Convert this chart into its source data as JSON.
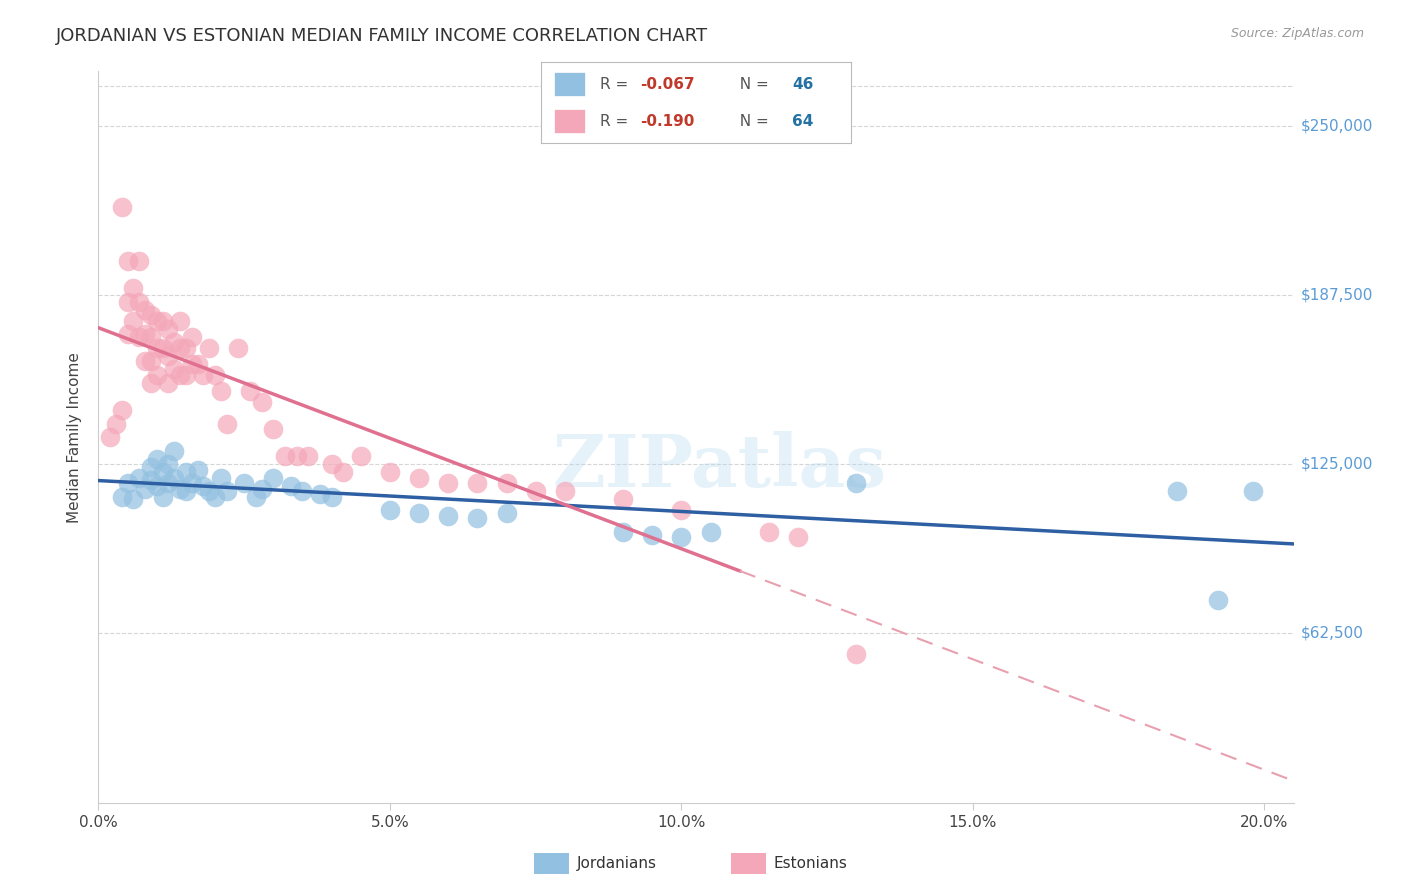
{
  "title": "JORDANIAN VS ESTONIAN MEDIAN FAMILY INCOME CORRELATION CHART",
  "source": "Source: ZipAtlas.com",
  "xlabel_ticks": [
    "0.0%",
    "5.0%",
    "10.0%",
    "15.0%",
    "20.0%"
  ],
  "xlabel_vals": [
    0.0,
    0.05,
    0.1,
    0.15,
    0.2
  ],
  "ylabel": "Median Family Income",
  "ytick_labels": [
    "$62,500",
    "$125,000",
    "$187,500",
    "$250,000"
  ],
  "ytick_vals": [
    62500,
    125000,
    187500,
    250000
  ],
  "ylim": [
    0,
    270000
  ],
  "xlim": [
    0.0,
    0.205
  ],
  "watermark": "ZIPatlas",
  "legend_blue_r": "-0.067",
  "legend_blue_n": "46",
  "legend_pink_r": "-0.190",
  "legend_pink_n": "64",
  "legend_label_blue": "Jordanians",
  "legend_label_pink": "Estonians",
  "blue_color": "#92c0e0",
  "pink_color": "#f4a7b9",
  "blue_line_color": "#2e5fa3",
  "pink_solid_color": "#e07090",
  "pink_dash_color": "#e8a0b0",
  "background_color": "#ffffff",
  "grid_color": "#cccccc",
  "jordanians_x": [
    0.004,
    0.005,
    0.006,
    0.007,
    0.008,
    0.009,
    0.009,
    0.01,
    0.01,
    0.011,
    0.011,
    0.012,
    0.012,
    0.013,
    0.013,
    0.014,
    0.015,
    0.015,
    0.016,
    0.017,
    0.018,
    0.019,
    0.02,
    0.021,
    0.022,
    0.025,
    0.027,
    0.028,
    0.03,
    0.033,
    0.035,
    0.038,
    0.04,
    0.05,
    0.055,
    0.06,
    0.065,
    0.07,
    0.09,
    0.095,
    0.1,
    0.105,
    0.13,
    0.185,
    0.192,
    0.198
  ],
  "jordanians_y": [
    113000,
    118000,
    112000,
    120000,
    116000,
    124000,
    119000,
    127000,
    117000,
    122000,
    113000,
    125000,
    118000,
    130000,
    120000,
    116000,
    122000,
    115000,
    118000,
    123000,
    117000,
    115000,
    113000,
    120000,
    115000,
    118000,
    113000,
    116000,
    120000,
    117000,
    115000,
    114000,
    113000,
    108000,
    107000,
    106000,
    105000,
    107000,
    100000,
    99000,
    98000,
    100000,
    118000,
    115000,
    75000,
    115000
  ],
  "estonians_x": [
    0.002,
    0.003,
    0.004,
    0.004,
    0.005,
    0.005,
    0.005,
    0.006,
    0.006,
    0.007,
    0.007,
    0.007,
    0.008,
    0.008,
    0.008,
    0.009,
    0.009,
    0.009,
    0.009,
    0.01,
    0.01,
    0.01,
    0.011,
    0.011,
    0.012,
    0.012,
    0.012,
    0.013,
    0.013,
    0.014,
    0.014,
    0.014,
    0.015,
    0.015,
    0.016,
    0.016,
    0.017,
    0.018,
    0.019,
    0.02,
    0.021,
    0.022,
    0.024,
    0.026,
    0.028,
    0.03,
    0.032,
    0.034,
    0.036,
    0.04,
    0.042,
    0.045,
    0.05,
    0.055,
    0.06,
    0.065,
    0.07,
    0.075,
    0.08,
    0.09,
    0.1,
    0.115,
    0.12,
    0.13
  ],
  "estonians_y": [
    135000,
    140000,
    145000,
    220000,
    200000,
    185000,
    173000,
    190000,
    178000,
    200000,
    185000,
    172000,
    182000,
    173000,
    163000,
    180000,
    172000,
    163000,
    155000,
    178000,
    168000,
    158000,
    178000,
    168000,
    175000,
    165000,
    155000,
    170000,
    160000,
    178000,
    168000,
    158000,
    168000,
    158000,
    172000,
    162000,
    162000,
    158000,
    168000,
    158000,
    152000,
    140000,
    168000,
    152000,
    148000,
    138000,
    128000,
    128000,
    128000,
    125000,
    122000,
    128000,
    122000,
    120000,
    118000,
    118000,
    118000,
    115000,
    115000,
    112000,
    108000,
    100000,
    98000,
    55000
  ]
}
